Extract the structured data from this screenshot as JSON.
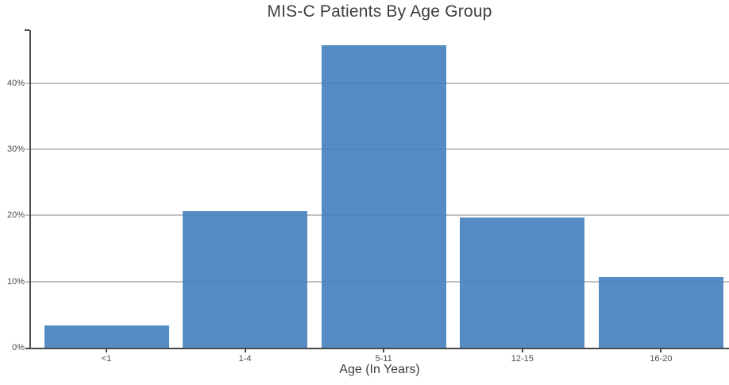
{
  "page": {
    "background_color": "#ffffff"
  },
  "chart_data": {
    "type": "bar",
    "title": "MIS-C Patients By Age Group",
    "xlabel": "Age (In Years)",
    "ylabel": "",
    "categories": [
      "<1",
      "1-4",
      "5-11",
      "12-15",
      "16-20"
    ],
    "values": [
      3.4,
      20.7,
      45.7,
      19.7,
      10.7
    ],
    "value_unit": "percent",
    "y_ticks": [
      {
        "value": 0,
        "label": "0%"
      },
      {
        "value": 10,
        "label": "10%"
      },
      {
        "value": 20,
        "label": "20%"
      },
      {
        "value": 30,
        "label": "30%"
      },
      {
        "value": 40,
        "label": "40%"
      }
    ],
    "ylim": [
      0,
      48
    ],
    "grid": "horizontal",
    "legend_position": "none",
    "colors": {
      "bar_fill": "#5892c4",
      "axis": "#4a4a4a",
      "gridline": "#bdbdbd",
      "title_text": "#3f3f3f",
      "tick_text": "#4c4c4c"
    }
  }
}
